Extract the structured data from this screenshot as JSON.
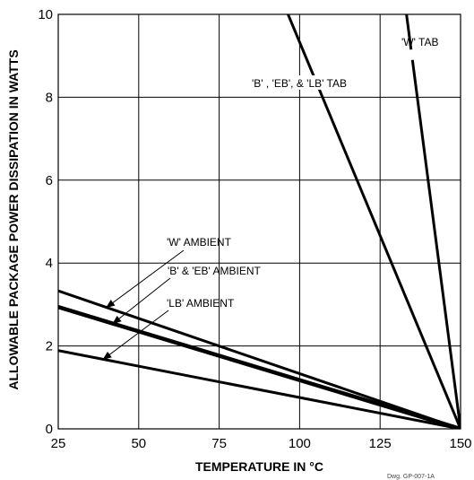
{
  "chart_data": {
    "type": "line",
    "xlabel": "TEMPERATURE IN °C",
    "ylabel": "ALLOWABLE PACKAGE POWER DISSIPATION IN WATTS",
    "xlim": [
      25,
      150
    ],
    "ylim": [
      0,
      10
    ],
    "x_ticks": [
      "25",
      "50",
      "75",
      "100",
      "125",
      "150"
    ],
    "y_ticks": [
      "0",
      "2",
      "4",
      "6",
      "8",
      "10"
    ],
    "grid": true,
    "figure_code": "Dwg. GP-007-1A",
    "series": [
      {
        "name": "'W' TAB",
        "x": [
          133.2,
          150
        ],
        "y": [
          10,
          0
        ],
        "stroke": 3,
        "dashed_label_gap": true
      },
      {
        "name": "'B' , 'EB', & 'LB' TAB",
        "x": [
          96.4,
          150
        ],
        "y": [
          10,
          0
        ],
        "stroke": 3
      },
      {
        "name": "'W' AMBIENT",
        "x": [
          25,
          150
        ],
        "y": [
          3.33,
          0
        ],
        "stroke": 3
      },
      {
        "name": "'B' & 'EB' AMBIENT",
        "x": [
          25,
          150
        ],
        "y": [
          2.94,
          0
        ],
        "stroke": 4.5
      },
      {
        "name": "'LB' AMBIENT",
        "x": [
          25,
          150
        ],
        "y": [
          1.89,
          0
        ],
        "stroke": 3
      }
    ],
    "annotations": [
      {
        "text": "'W' TAB",
        "series": 0
      },
      {
        "text": "'B' , 'EB', & 'LB' TAB",
        "series": 1
      },
      {
        "text": "'W' AMBIENT",
        "series": 2,
        "arrow_to_x": 40
      },
      {
        "text": "'B' & 'EB' AMBIENT",
        "series": 3,
        "arrow_to_x": 42
      },
      {
        "text": "'LB' AMBIENT",
        "series": 4,
        "arrow_to_x": 39
      }
    ]
  }
}
